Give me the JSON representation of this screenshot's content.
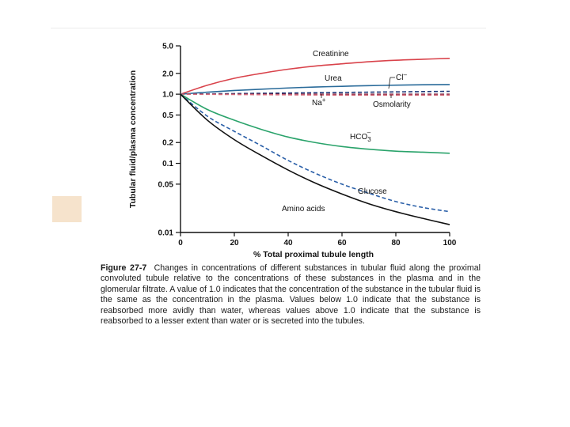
{
  "colors": {
    "creatinine": "#d9434b",
    "urea": "#2a6b9a",
    "chloride": "#1f3a7a",
    "sodium": "#7a1f3a",
    "osmolarity": "#d46a7a",
    "hco3": "#2aa36b",
    "glucose": "#2a5fa8",
    "amino": "#111111",
    "swatch": "#f6e3cc"
  },
  "chart_data": {
    "type": "line",
    "title": "",
    "xlabel": "% Total proximal tubule length",
    "ylabel": "Tubular fluid/plasma concentration",
    "xlim": [
      0,
      100
    ],
    "ylim": [
      0.01,
      5.0
    ],
    "yscale": "log",
    "x_ticks": [
      0,
      20,
      40,
      60,
      80,
      100
    ],
    "x_tick_labels": [
      "0",
      "20",
      "40",
      "60",
      "80",
      "100"
    ],
    "y_ticks": [
      0.01,
      0.05,
      0.1,
      0.2,
      0.5,
      1.0,
      2.0,
      5.0
    ],
    "y_tick_labels": [
      "0.01",
      "0.05",
      "0.1",
      "0.2",
      "0.5",
      "1.0",
      "2.0",
      "5.0"
    ],
    "x": [
      0,
      10,
      20,
      30,
      40,
      50,
      60,
      70,
      80,
      90,
      100
    ],
    "series": [
      {
        "key": "creatinine",
        "name": "Creatinine",
        "style": "solid",
        "values": [
          1.0,
          1.35,
          1.7,
          2.0,
          2.3,
          2.55,
          2.75,
          2.95,
          3.1,
          3.2,
          3.3
        ]
      },
      {
        "key": "urea",
        "name": "Urea",
        "style": "solid",
        "values": [
          1.0,
          1.07,
          1.13,
          1.18,
          1.23,
          1.27,
          1.3,
          1.33,
          1.35,
          1.37,
          1.38
        ]
      },
      {
        "key": "chloride",
        "name": "Cl–",
        "style": "dashed",
        "values": [
          1.0,
          1.01,
          1.02,
          1.03,
          1.04,
          1.05,
          1.06,
          1.07,
          1.08,
          1.09,
          1.1
        ]
      },
      {
        "key": "sodium",
        "name": "Na+",
        "style": "dashed",
        "values": [
          1.0,
          1.0,
          1.0,
          1.0,
          1.0,
          1.0,
          1.0,
          1.0,
          1.0,
          1.0,
          1.0
        ]
      },
      {
        "key": "osmolarity",
        "name": "Osmolarity",
        "style": "dashed",
        "values": [
          1.0,
          0.995,
          0.99,
          0.985,
          0.98,
          0.975,
          0.97,
          0.97,
          0.97,
          0.97,
          0.97
        ]
      },
      {
        "key": "hco3",
        "name": "HCO3–",
        "style": "solid",
        "values": [
          1.0,
          0.6,
          0.42,
          0.31,
          0.24,
          0.2,
          0.175,
          0.16,
          0.15,
          0.145,
          0.14
        ]
      },
      {
        "key": "glucose",
        "name": "Glucose",
        "style": "dashed",
        "values": [
          1.0,
          0.48,
          0.29,
          0.18,
          0.11,
          0.072,
          0.05,
          0.037,
          0.028,
          0.023,
          0.02
        ]
      },
      {
        "key": "amino",
        "name": "Amino acids",
        "style": "solid",
        "values": [
          1.0,
          0.42,
          0.22,
          0.13,
          0.08,
          0.052,
          0.036,
          0.026,
          0.02,
          0.016,
          0.013
        ]
      }
    ],
    "annotations": {
      "creatinine": "Creatinine",
      "urea": "Urea",
      "chloride": "Cl",
      "chloride_sup": "–",
      "sodium": "Na",
      "sodium_sup": "+",
      "osmolarity": "Osmolarity",
      "hco3": "HCO",
      "hco3_sub": "3",
      "hco3_sup": "–",
      "glucose": "Glucose",
      "amino": "Amino acids"
    }
  },
  "caption": {
    "label": "Figure 27-7",
    "text": "Changes in concentrations of different substances in tubular fluid along the proximal convoluted tubule relative to the concentrations of these substances in the plasma and in the glomerular filtrate. A value of 1.0 indicates that the concentration of the substance in the tubular fluid is the same as the concentration in the plasma. Values below 1.0 indicate that the substance is reabsorbed more avidly than water, whereas values above 1.0 indicate that the substance is reabsorbed to a lesser extent than water or is secreted into the tubules."
  }
}
